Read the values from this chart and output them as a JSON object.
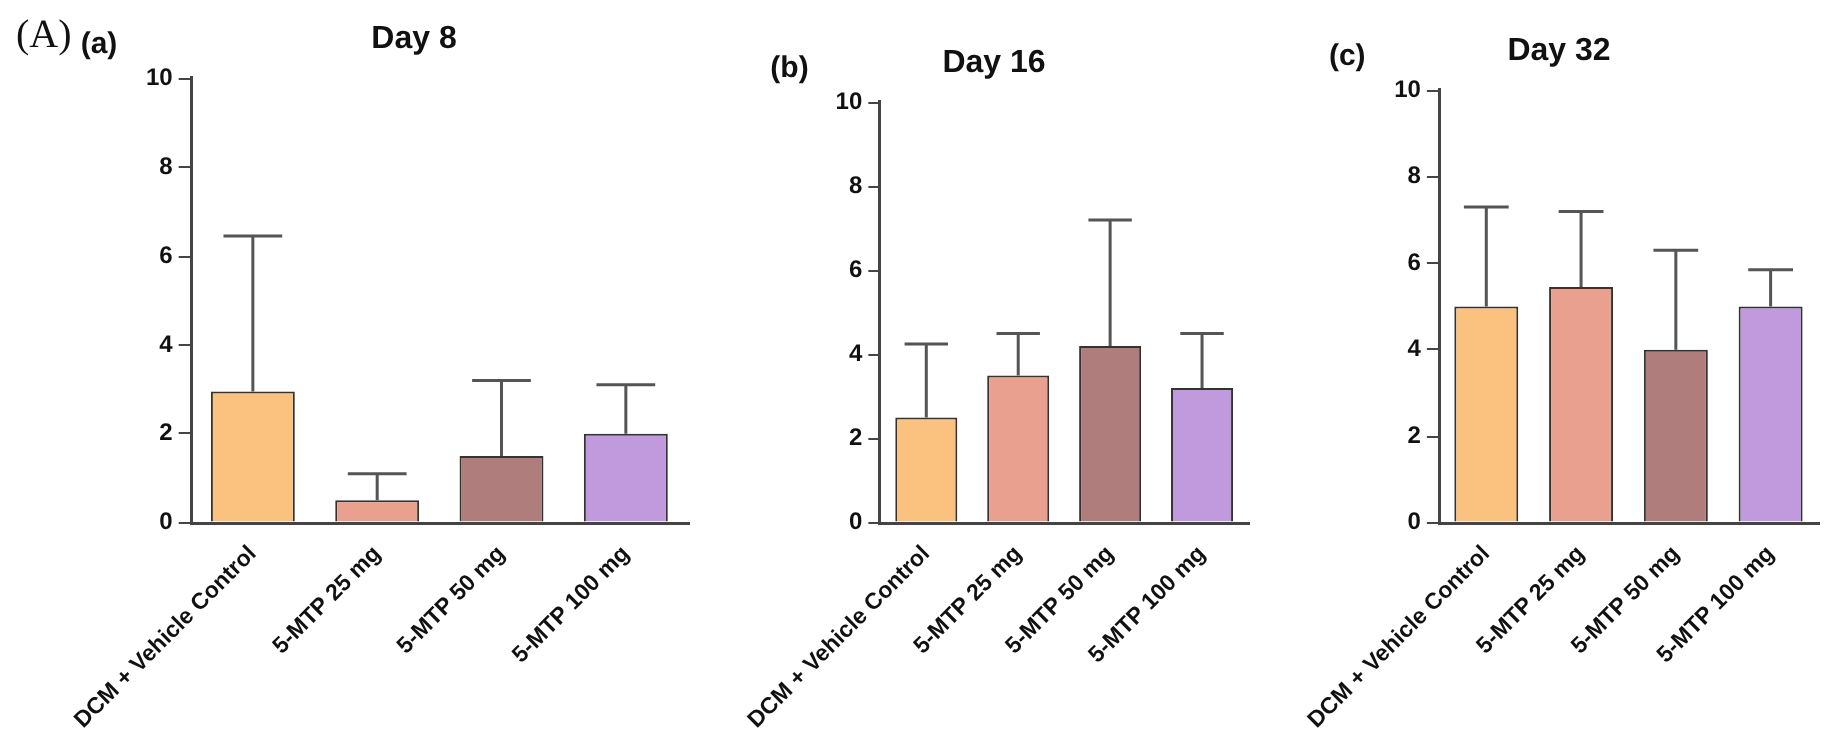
{
  "chart_data": [
    {
      "type": "bar",
      "title": "Day 8",
      "annotations": [
        "(A)",
        "(a)"
      ],
      "categories": [
        "DCM + Vehicle Control",
        "5-MTP 25 mg",
        "5-MTP 50 mg",
        "5-MTP 100 mg"
      ],
      "values": [
        2.95,
        0.5,
        1.5,
        2.0
      ],
      "errors": [
        [
          2.95,
          6.45
        ],
        [
          0.5,
          1.1
        ],
        [
          1.5,
          3.2
        ],
        [
          2.0,
          3.1
        ]
      ],
      "colors": [
        "#fbc27f",
        "#e9a08f",
        "#b07d7d",
        "#c09adc"
      ],
      "ylim": [
        0,
        10
      ],
      "yticks": [
        0,
        2,
        4,
        6,
        8,
        10
      ],
      "grid": false,
      "legend": false
    },
    {
      "type": "bar",
      "title": "Day 16",
      "annotations": [
        "(b)"
      ],
      "categories": [
        "DCM + Vehicle Control",
        "5-MTP 25 mg",
        "5-MTP 50 mg",
        "5-MTP 100 mg"
      ],
      "values": [
        2.5,
        3.5,
        4.2,
        3.2
      ],
      "errors": [
        [
          2.5,
          4.25
        ],
        [
          3.5,
          4.5
        ],
        [
          4.2,
          7.2
        ],
        [
          3.2,
          4.5
        ]
      ],
      "colors": [
        "#fbc27f",
        "#e9a08f",
        "#b07d7d",
        "#c09adc"
      ],
      "ylim": [
        0,
        10
      ],
      "yticks": [
        0,
        2,
        4,
        6,
        8,
        10
      ],
      "grid": false,
      "legend": false
    },
    {
      "type": "bar",
      "title": "Day 32",
      "annotations": [
        "(c)"
      ],
      "categories": [
        "DCM + Vehicle Control",
        "5-MTP 25 mg",
        "5-MTP 50 mg",
        "5-MTP 100 mg"
      ],
      "values": [
        5.0,
        5.45,
        4.0,
        5.0
      ],
      "errors": [
        [
          5.0,
          7.3
        ],
        [
          5.45,
          7.2
        ],
        [
          4.0,
          6.3
        ],
        [
          5.0,
          5.85
        ]
      ],
      "colors": [
        "#fbc27f",
        "#e9a08f",
        "#b07d7d",
        "#c09adc"
      ],
      "ylim": [
        0,
        10
      ],
      "yticks": [
        0,
        2,
        4,
        6,
        8,
        10
      ],
      "grid": false,
      "legend": false
    }
  ]
}
